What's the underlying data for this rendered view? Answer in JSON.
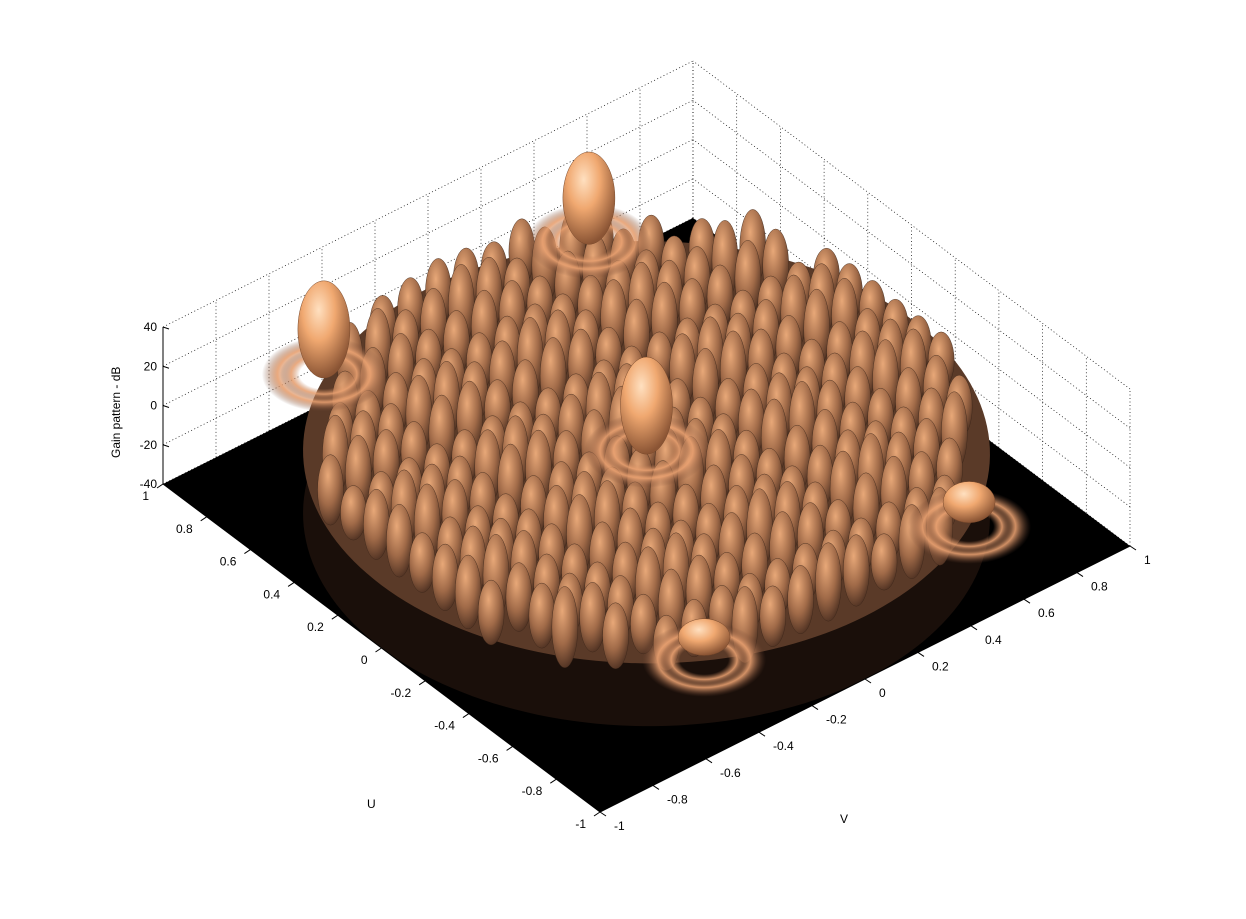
{
  "chart_data": {
    "type": "surface",
    "title": "",
    "xlabel": "U",
    "ylabel": "V",
    "zlabel": "Gain pattern - dB",
    "xlim": [
      -1,
      1
    ],
    "ylim": [
      -1,
      1
    ],
    "zlim": [
      -40,
      40
    ],
    "u_ticks": [
      "-1",
      "-0.8",
      "-0.6",
      "-0.4",
      "-0.2",
      "0",
      "0.2",
      "0.4",
      "0.6",
      "0.8",
      "1"
    ],
    "v_ticks": [
      "-1",
      "-0.8",
      "-0.6",
      "-0.4",
      "-0.2",
      "0",
      "0.2",
      "0.4",
      "0.6",
      "0.8",
      "1"
    ],
    "z_ticks": [
      "-40",
      "-20",
      "0",
      "20",
      "40"
    ],
    "grid": true,
    "colormap": "copper",
    "visible_region": "unit circle u^2 + v^2 <= 1",
    "main_lobe": {
      "u": 0,
      "v": 0,
      "peak_db": 35
    },
    "grating_lobes": [
      {
        "u": 0.87,
        "v": -0.5,
        "peak_db": 35
      },
      {
        "u": 0.87,
        "v": 0.5,
        "peak_db": 33
      },
      {
        "u": -0.87,
        "v": -0.5,
        "peak_db": 10
      },
      {
        "u": -0.87,
        "v": 0.5,
        "peak_db": 12
      }
    ],
    "sidelobe_level_db": [
      -10,
      15
    ],
    "floor_db": -40
  },
  "colors": {
    "floor": "#000000",
    "surface_low": "#3a2418",
    "surface_mid": "#b07a50",
    "surface_high": "#ffc890"
  }
}
